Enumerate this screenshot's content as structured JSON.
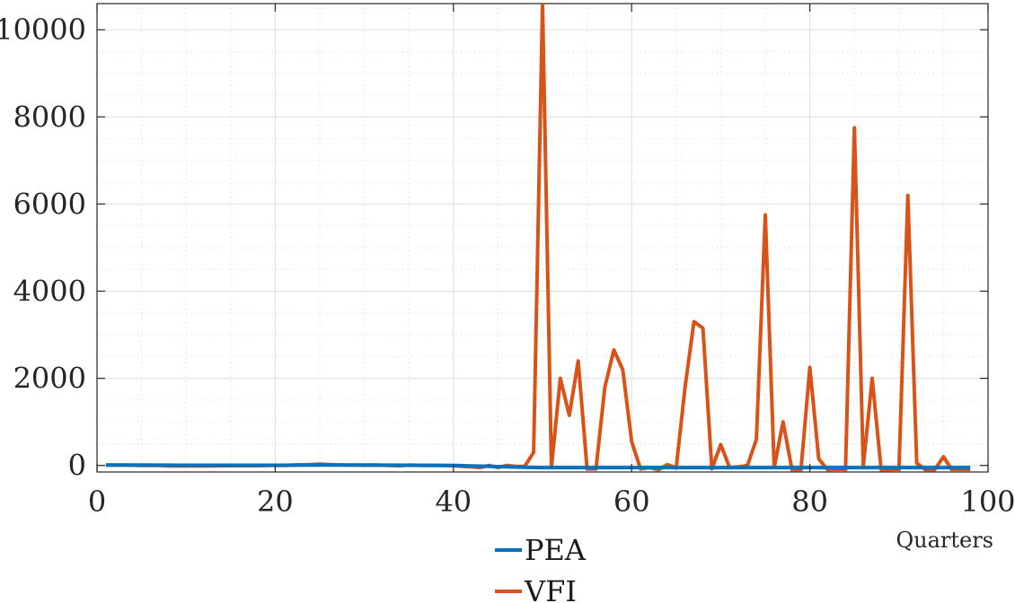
{
  "chart_data": {
    "type": "line",
    "title": "",
    "xlabel": "Quarters",
    "ylabel": "",
    "xlim": [
      0,
      100
    ],
    "ylim": [
      -150,
      10600
    ],
    "x_ticks": [
      0,
      20,
      40,
      60,
      80,
      100
    ],
    "y_ticks": [
      0,
      2000,
      4000,
      6000,
      8000,
      10000
    ],
    "grid": true,
    "minor_grid": true,
    "legend_position": "bottom-center",
    "series": [
      {
        "name": "PEA",
        "color": "#0072BD",
        "x": [
          1,
          5,
          10,
          15,
          20,
          25,
          30,
          35,
          40,
          42,
          44,
          46,
          48,
          50,
          55,
          60,
          65,
          70,
          75,
          80,
          85,
          90,
          95,
          98
        ],
        "y": [
          10,
          8,
          5,
          5,
          5,
          10,
          8,
          5,
          0,
          -10,
          -20,
          -30,
          -40,
          -50,
          -50,
          -50,
          -50,
          -50,
          -50,
          -50,
          -50,
          -50,
          -50,
          -50
        ]
      },
      {
        "name": "VFI",
        "color": "#D95319",
        "x": [
          1,
          2,
          3,
          4,
          5,
          6,
          7,
          8,
          9,
          10,
          11,
          12,
          13,
          14,
          15,
          16,
          17,
          18,
          19,
          20,
          21,
          22,
          23,
          24,
          25,
          26,
          27,
          28,
          29,
          30,
          31,
          32,
          33,
          34,
          35,
          36,
          37,
          38,
          39,
          40,
          41,
          42,
          43,
          44,
          45,
          46,
          47,
          48,
          49,
          50,
          51,
          52,
          53,
          54,
          55,
          56,
          57,
          58,
          59,
          60,
          61,
          62,
          63,
          64,
          65,
          66,
          67,
          68,
          69,
          70,
          71,
          72,
          73,
          74,
          75,
          76,
          77,
          78,
          79,
          80,
          81,
          82,
          83,
          84,
          85,
          86,
          87,
          88,
          89,
          90,
          91,
          92,
          93,
          94,
          95,
          96,
          97,
          98
        ],
        "y": [
          10,
          10,
          10,
          5,
          0,
          0,
          0,
          -10,
          -10,
          -10,
          -10,
          -10,
          -10,
          -5,
          -5,
          -5,
          -5,
          -5,
          0,
          5,
          0,
          10,
          15,
          20,
          30,
          20,
          15,
          10,
          10,
          5,
          10,
          5,
          0,
          -5,
          10,
          5,
          0,
          5,
          0,
          -5,
          -20,
          -30,
          -50,
          0,
          -50,
          0,
          -20,
          -20,
          300,
          10600,
          -50,
          2000,
          1150,
          2400,
          -80,
          -80,
          1800,
          2650,
          2200,
          550,
          -80,
          -50,
          -100,
          20,
          -60,
          1800,
          3300,
          3150,
          -80,
          480,
          -50,
          -30,
          0,
          600,
          5750,
          -50,
          1000,
          -100,
          -100,
          2250,
          150,
          -100,
          -110,
          -110,
          7750,
          -20,
          2000,
          -100,
          -100,
          -110,
          6200,
          50,
          -100,
          -100,
          200,
          -120,
          -120,
          -130
        ]
      }
    ]
  }
}
